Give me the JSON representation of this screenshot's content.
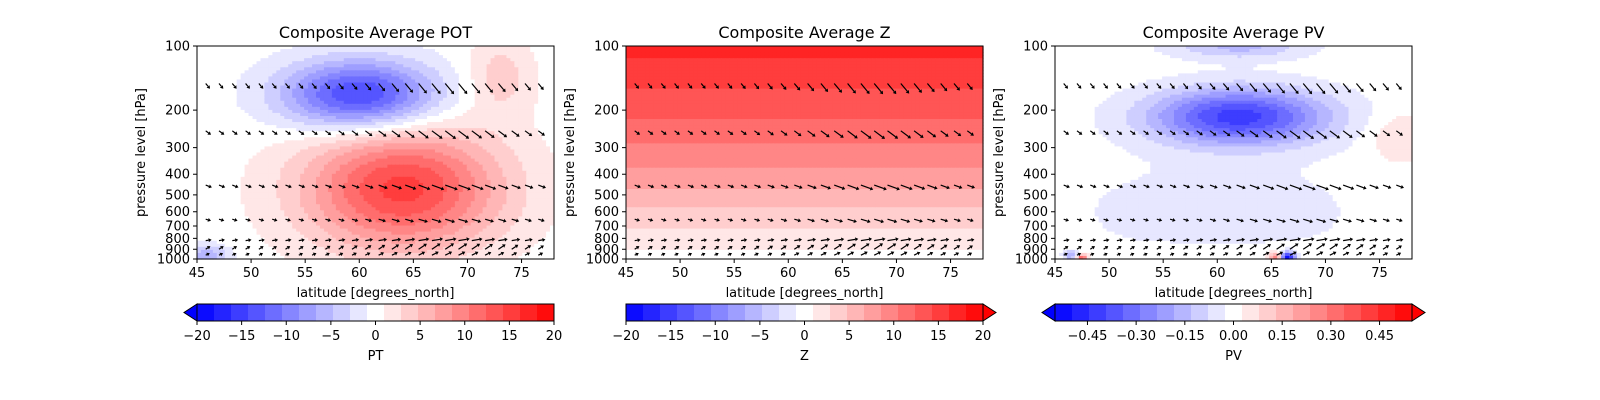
{
  "chart_data": [
    {
      "type": "contourf",
      "title": "Composite Average POT",
      "xlabel": "latitude [degrees_north]",
      "ylabel": "pressure level [hPa]",
      "xlim": [
        45,
        78
      ],
      "ylim": [
        1000,
        100
      ],
      "yscale": "log",
      "x_ticks": [
        "45",
        "50",
        "55",
        "60",
        "65",
        "70",
        "75"
      ],
      "y_ticks": [
        "100",
        "200",
        "300",
        "400",
        "500",
        "600",
        "700",
        "800",
        "900",
        "1000"
      ],
      "field": {
        "blobs": [
          {
            "lat": 60,
            "p": 170,
            "amp": -15,
            "slat": 7,
            "slogp": 0.16
          },
          {
            "lat": 64,
            "p": 470,
            "amp": 15,
            "slat": 9,
            "slogp": 0.28
          },
          {
            "lat": 73,
            "p": 140,
            "amp": 4,
            "slat": 3,
            "slogp": 0.18
          },
          {
            "lat": 46,
            "p": 960,
            "amp": -6,
            "slat": 2,
            "slogp": 0.05
          }
        ]
      },
      "colorbar": {
        "label": "PT",
        "range": [
          -20,
          20
        ],
        "ticks": [
          "−20",
          "−15",
          "−10",
          "−5",
          "0",
          "5",
          "10",
          "15",
          "20"
        ],
        "extend": "min",
        "colormap": [
          "#0000ff",
          "#ffffff",
          "#ff0000"
        ]
      },
      "vectors": {
        "rows": [
          {
            "p": 150,
            "u": 10,
            "v": -12
          },
          {
            "p": 250,
            "u": 12,
            "v": -9
          },
          {
            "p": 450,
            "u": 14,
            "v": -5
          },
          {
            "p": 650,
            "u": 10,
            "v": -3
          },
          {
            "p": 820,
            "u": 12,
            "v": 2
          },
          {
            "p": 900,
            "u": 9,
            "v": 6
          },
          {
            "p": 960,
            "u": 6,
            "v": 3
          }
        ]
      }
    },
    {
      "type": "contourf",
      "title": "Composite Average Z",
      "xlabel": "latitude [degrees_north]",
      "ylabel": "pressure level [hPa]",
      "xlim": [
        45,
        78
      ],
      "ylim": [
        1000,
        100
      ],
      "yscale": "log",
      "x_ticks": [
        "45",
        "50",
        "55",
        "60",
        "65",
        "70",
        "75"
      ],
      "y_ticks": [
        "100",
        "200",
        "300",
        "400",
        "500",
        "600",
        "700",
        "800",
        "900",
        "1000"
      ],
      "field": {
        "gradient": [
          {
            "p": 100,
            "value": 17
          },
          {
            "p": 200,
            "value": 13
          },
          {
            "p": 400,
            "value": 8
          },
          {
            "p": 700,
            "value": 3
          },
          {
            "p": 1000,
            "value": 0
          }
        ]
      },
      "colorbar": {
        "label": "Z",
        "range": [
          -20,
          20
        ],
        "ticks": [
          "−20",
          "−15",
          "−10",
          "−5",
          "0",
          "5",
          "10",
          "15",
          "20"
        ],
        "extend": "max",
        "colormap": [
          "#0000ff",
          "#ffffff",
          "#ff0000"
        ]
      },
      "vectors": {
        "rows": [
          {
            "p": 150,
            "u": 10,
            "v": -12
          },
          {
            "p": 250,
            "u": 12,
            "v": -9
          },
          {
            "p": 450,
            "u": 14,
            "v": -5
          },
          {
            "p": 650,
            "u": 10,
            "v": -3
          },
          {
            "p": 820,
            "u": 12,
            "v": 2
          },
          {
            "p": 900,
            "u": 9,
            "v": 6
          },
          {
            "p": 960,
            "u": 6,
            "v": 3
          }
        ]
      }
    },
    {
      "type": "contourf",
      "title": "Composite Average PV",
      "xlabel": "latitude [degrees_north]",
      "ylabel": "pressure level [hPa]",
      "xlim": [
        45,
        78
      ],
      "ylim": [
        1000,
        100
      ],
      "yscale": "log",
      "x_ticks": [
        "45",
        "50",
        "55",
        "60",
        "65",
        "70",
        "75"
      ],
      "y_ticks": [
        "100",
        "200",
        "300",
        "400",
        "500",
        "600",
        "700",
        "800",
        "900",
        "1000"
      ],
      "field": {
        "blobs": [
          {
            "lat": 62,
            "p": 215,
            "amp": -0.42,
            "slat": 8,
            "slogp": 0.13
          },
          {
            "lat": 62,
            "p": 100,
            "amp": -0.15,
            "slat": 6,
            "slogp": 0.06
          },
          {
            "lat": 60,
            "p": 600,
            "amp": -0.05,
            "slat": 14,
            "slogp": 0.25
          },
          {
            "lat": 77,
            "p": 270,
            "amp": 0.08,
            "slat": 3,
            "slogp": 0.12
          },
          {
            "lat": 66.5,
            "p": 985,
            "amp": -0.55,
            "slat": 0.7,
            "slogp": 0.025
          },
          {
            "lat": 65.5,
            "p": 985,
            "amp": 0.3,
            "slat": 0.6,
            "slogp": 0.025
          },
          {
            "lat": 47.5,
            "p": 990,
            "amp": 0.35,
            "slat": 0.5,
            "slogp": 0.02
          },
          {
            "lat": 46.5,
            "p": 960,
            "amp": -0.2,
            "slat": 0.7,
            "slogp": 0.02
          },
          {
            "lat": 60,
            "p": 1000,
            "amp": 0.04,
            "slat": 12,
            "slogp": 0.06
          }
        ]
      },
      "colorbar": {
        "label": "PV",
        "range": [
          -0.55,
          0.55
        ],
        "ticks": [
          "−0.45",
          "−0.30",
          "−0.15",
          "0.00",
          "0.15",
          "0.30",
          "0.45"
        ],
        "tick_values": [
          -0.45,
          -0.3,
          -0.15,
          0,
          0.15,
          0.3,
          0.45
        ],
        "extend": "both",
        "colormap": [
          "#0000ff",
          "#ffffff",
          "#ff0000"
        ]
      },
      "vectors": {
        "rows": [
          {
            "p": 150,
            "u": 10,
            "v": -12
          },
          {
            "p": 250,
            "u": 12,
            "v": -9
          },
          {
            "p": 450,
            "u": 14,
            "v": -5
          },
          {
            "p": 650,
            "u": 10,
            "v": -3
          },
          {
            "p": 820,
            "u": 12,
            "v": 2
          },
          {
            "p": 900,
            "u": 9,
            "v": 6
          },
          {
            "p": 960,
            "u": 6,
            "v": 3
          }
        ]
      }
    }
  ]
}
